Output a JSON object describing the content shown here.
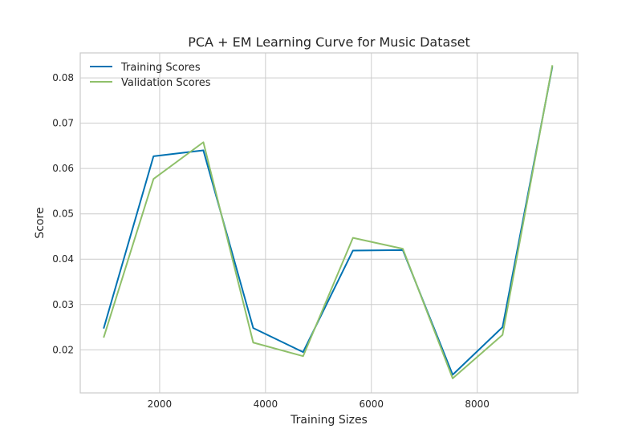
{
  "chart_data": {
    "type": "line",
    "title": "PCA + EM Learning Curve for Music Dataset",
    "xlabel": "Training Sizes",
    "ylabel": "Score",
    "x": [
      942,
      1884,
      2826,
      3768,
      4710,
      5652,
      6594,
      7536,
      8478,
      9420
    ],
    "xlim": [
      500,
      9900
    ],
    "ylim": [
      0.0105,
      0.0855
    ],
    "xticks": [
      2000,
      4000,
      6000,
      8000
    ],
    "yticks": [
      0.02,
      0.03,
      0.04,
      0.05,
      0.06,
      0.07,
      0.08
    ],
    "grid": true,
    "legend_position": "top-left",
    "series": [
      {
        "name": "Training Scores",
        "color": "#0072b2",
        "values": [
          0.0247,
          0.0627,
          0.064,
          0.0248,
          0.0195,
          0.0419,
          0.042,
          0.0145,
          0.025,
          0.0825
        ]
      },
      {
        "name": "Validation Scores",
        "color": "#8fc06a",
        "values": [
          0.0227,
          0.0577,
          0.0658,
          0.0216,
          0.0186,
          0.0447,
          0.0423,
          0.0137,
          0.0233,
          0.0828
        ]
      }
    ]
  }
}
